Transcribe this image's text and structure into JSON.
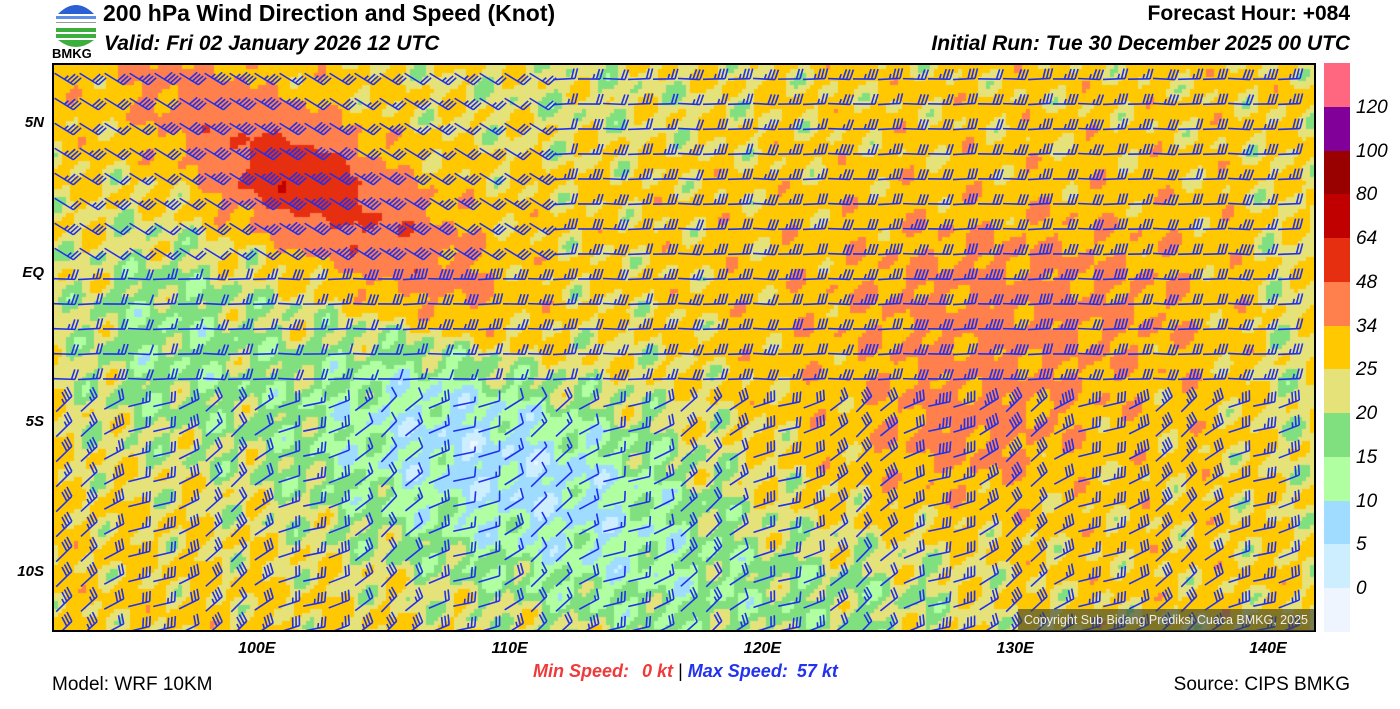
{
  "header": {
    "title": "200 hPa Wind Direction and Speed (Knot)",
    "valid": "Valid: Fri 02 January 2026 12 UTC",
    "forecast_hour": "Forecast Hour: +084",
    "initial_run": "Initial Run: Tue 30 December 2025 00 UTC",
    "logo_text": "BMKG"
  },
  "axes": {
    "lat_labels": [
      {
        "label": "5N",
        "lat": 5
      },
      {
        "label": "EQ",
        "lat": 0
      },
      {
        "label": "5S",
        "lat": -5
      },
      {
        "label": "10S",
        "lat": -10
      }
    ],
    "lon_labels": [
      {
        "label": "100E",
        "lon": 100
      },
      {
        "label": "110E",
        "lon": 110
      },
      {
        "label": "120E",
        "lon": 120
      },
      {
        "label": "130E",
        "lon": 130
      },
      {
        "label": "140E",
        "lon": 140
      }
    ],
    "lon_range": [
      91.9,
      141.9
    ],
    "lat_range": [
      -12,
      7
    ]
  },
  "colorbar": {
    "labels": [
      "120",
      "100",
      "80",
      "64",
      "48",
      "34",
      "25",
      "20",
      "15",
      "10",
      "5",
      "0"
    ],
    "colors": [
      "#ff6680",
      "#800099",
      "#990000",
      "#c00000",
      "#e62e10",
      "#ff7f4d",
      "#ffc800",
      "#e6e27a",
      "#80e080",
      "#b0ffa0",
      "#a0dcff",
      "#cdeeff",
      "#eef5ff"
    ]
  },
  "barb_color": "#2030ee",
  "copyright": "Copyright Sub Bidang Prediksi Cuaca BMKG, 2025",
  "footer": {
    "min_label": "Min Speed:",
    "min_value": "0 kt",
    "separator": "|",
    "max_label": "Max Speed:",
    "max_value": "57 kt",
    "model": "Model: WRF 10KM",
    "source": "Source: CIPS BMKG"
  }
}
